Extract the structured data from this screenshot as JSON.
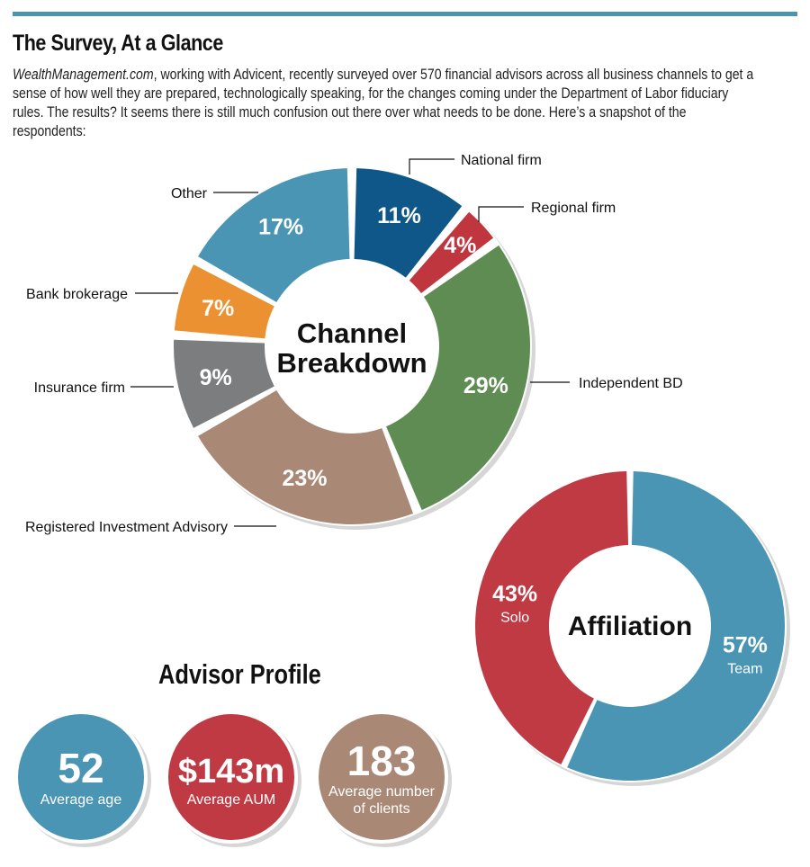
{
  "header": {
    "title": "The Survey, At a Glance",
    "intro_site": "WealthManagement.com",
    "intro_rest": ", working with Advicent, recently surveyed over 570 financial advisors across all business channels to get a sense of how well they are prepared, technologically speaking, for the changes coming under the Department of Labor fiduciary rules. The results? It seems there is still much confusion out there over what needs to be done. Here’s a snapshot of the respondents:"
  },
  "chart_data": [
    {
      "type": "pie",
      "variant": "donut",
      "title": "Channel Breakdown",
      "categories": [
        "National firm",
        "Regional firm",
        "Independent BD",
        "Registered Investment Advisory",
        "Insurance firm",
        "Bank brokerage",
        "Other"
      ],
      "values": [
        11,
        4,
        29,
        23,
        9,
        7,
        17
      ],
      "labels": [
        "11%",
        "4%",
        "29%",
        "23%",
        "9%",
        "7%",
        "17%"
      ],
      "colors": [
        "#0f5788",
        "#c0363f",
        "#5e8c53",
        "#a98876",
        "#7b7d7f",
        "#ec9132",
        "#4a95b4"
      ],
      "unit": "%"
    },
    {
      "type": "pie",
      "variant": "donut",
      "title": "Affiliation",
      "categories": [
        "Team",
        "Solo"
      ],
      "values": [
        57,
        43
      ],
      "labels": [
        "57%",
        "43%"
      ],
      "colors": [
        "#4a95b4",
        "#c03a44"
      ],
      "unit": "%"
    }
  ],
  "profile": {
    "title": "Advisor Profile",
    "stats": [
      {
        "value": "52",
        "label_lines": [
          "Average age"
        ],
        "color": "#4a95b4"
      },
      {
        "value": "$143m",
        "label_lines": [
          "Average AUM"
        ],
        "color": "#c03a44"
      },
      {
        "value": "183",
        "label_lines": [
          "Average number",
          "of clients"
        ],
        "color": "#a98876"
      }
    ]
  }
}
